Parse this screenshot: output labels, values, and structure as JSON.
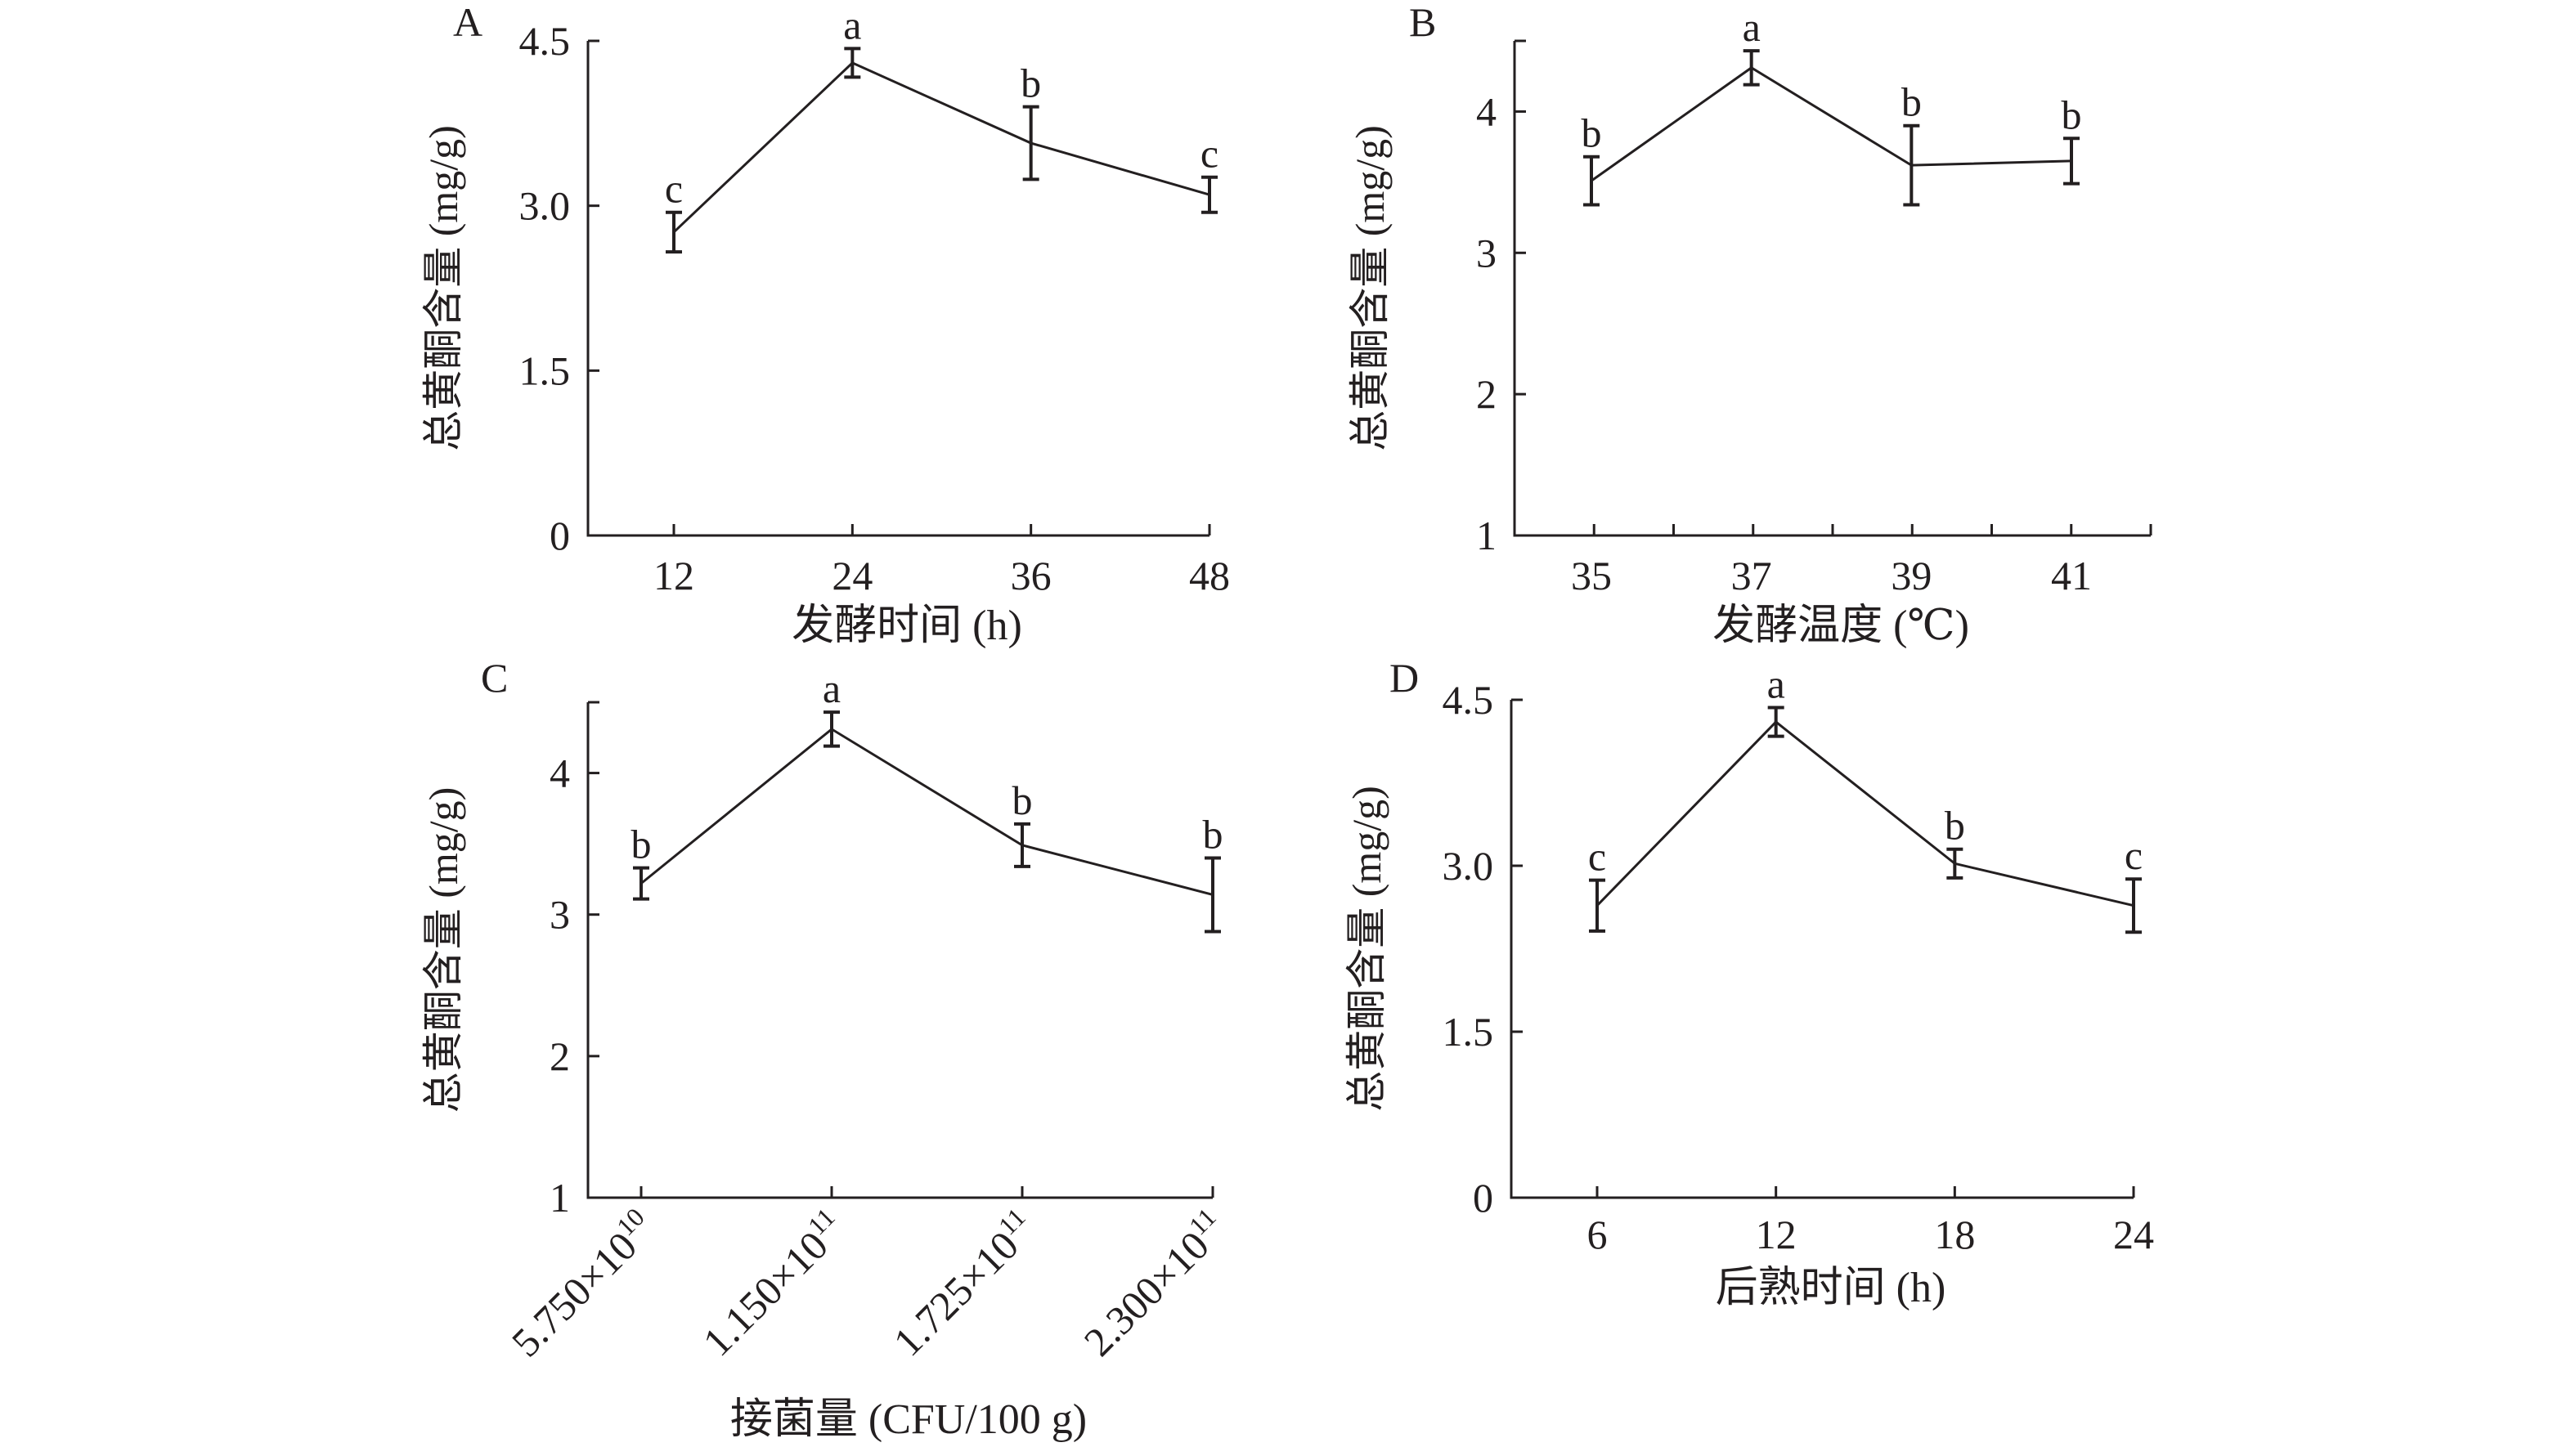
{
  "chart_data": [
    {
      "type": "line",
      "panel": "A",
      "xlabel": "发酵时间 (h)",
      "ylabel": "总黄酮含量 (mg/g)",
      "categories": [
        "12",
        "24",
        "36",
        "48"
      ],
      "values": [
        2.76,
        4.3,
        3.57,
        3.1
      ],
      "errors": [
        0.18,
        0.13,
        0.33,
        0.16
      ],
      "letters": [
        "c",
        "a",
        "b",
        "c"
      ],
      "ylim": [
        0,
        4.5
      ],
      "yticks": [
        "0",
        "1.5",
        "3.0",
        "4.5"
      ]
    },
    {
      "type": "line",
      "panel": "B",
      "xlabel": "发酵温度 (℃)",
      "ylabel": "总黄酮含量 (mg/g)",
      "categories": [
        "35",
        "37",
        "39",
        "41"
      ],
      "values": [
        3.51,
        4.31,
        3.62,
        3.65
      ],
      "errors": [
        0.17,
        0.12,
        0.28,
        0.16
      ],
      "letters": [
        "b",
        "a",
        "b",
        "b"
      ],
      "ylim": [
        1,
        4.5
      ],
      "xlim": [
        34,
        42
      ],
      "yticks": [
        "1",
        "2",
        "3",
        "4"
      ]
    },
    {
      "type": "line",
      "panel": "C",
      "xlabel": "接菌量 (CFU/100 g)",
      "ylabel": "总黄酮含量 (mg/g)",
      "categories": [
        {
          "base": "5.750×10",
          "exp": "10"
        },
        {
          "base": "1.150×10",
          "exp": "11"
        },
        {
          "base": "1.725×10",
          "exp": "11"
        },
        {
          "base": "2.300×10",
          "exp": "11"
        }
      ],
      "values": [
        3.22,
        4.31,
        3.49,
        3.14
      ],
      "errors": [
        0.11,
        0.12,
        0.15,
        0.26
      ],
      "letters": [
        "b",
        "a",
        "b",
        "b"
      ],
      "ylim": [
        1,
        4.5
      ],
      "yticks": [
        "1",
        "2",
        "3",
        "4"
      ]
    },
    {
      "type": "line",
      "panel": "D",
      "xlabel": "后熟时间 (h)",
      "ylabel": "总黄酮含量 (mg/g)",
      "categories": [
        "6",
        "12",
        "18",
        "24"
      ],
      "values": [
        2.64,
        4.3,
        3.02,
        2.64
      ],
      "errors": [
        0.23,
        0.13,
        0.13,
        0.24
      ],
      "letters": [
        "c",
        "a",
        "b",
        "c"
      ],
      "ylim": [
        0,
        4.5
      ],
      "yticks": [
        "0",
        "1.5",
        "3.0",
        "4.5"
      ]
    }
  ]
}
